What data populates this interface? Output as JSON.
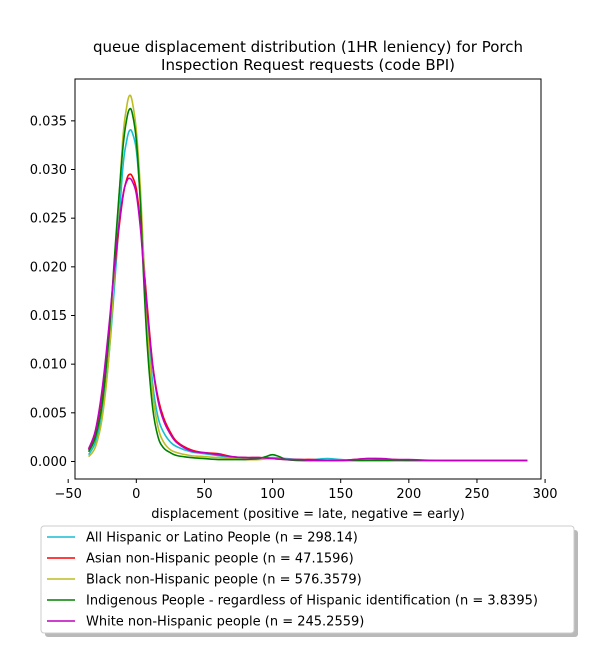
{
  "chart_data": {
    "type": "line",
    "title_line1": "queue displacement distribution (1HR leniency) for Porch",
    "title_line2": "Inspection Request  requests (code BPI)",
    "xlabel": "displacement (positive = late, negative = early)",
    "ylabel": "",
    "xlim": [
      -45,
      297
    ],
    "ylim": [
      -0.0018,
      0.0393
    ],
    "xticks": [
      -50,
      0,
      50,
      100,
      150,
      200,
      250,
      300
    ],
    "xtick_labels": [
      "−50",
      "0",
      "50",
      "100",
      "150",
      "200",
      "250",
      "300"
    ],
    "yticks": [
      0.0,
      0.005,
      0.01,
      0.015,
      0.02,
      0.025,
      0.03,
      0.035
    ],
    "ytick_labels": [
      "0.000",
      "0.005",
      "0.010",
      "0.015",
      "0.020",
      "0.025",
      "0.030",
      "0.035"
    ],
    "grid": false,
    "legend_position": "below plot, left",
    "series": [
      {
        "name": "All Hispanic or Latino People (n = 298.14)",
        "color": "#17becf",
        "x": [
          -35,
          -30,
          -25,
          -20,
          -15,
          -10,
          -7,
          -5,
          -3,
          0,
          3,
          5,
          8,
          12,
          16,
          20,
          25,
          30,
          40,
          50,
          60,
          70,
          80,
          90,
          100,
          110,
          120,
          130,
          140,
          150,
          160,
          170,
          180,
          190,
          200,
          220,
          240,
          260,
          287
        ],
        "y": [
          0.0007,
          0.002,
          0.005,
          0.011,
          0.02,
          0.03,
          0.033,
          0.034,
          0.0338,
          0.032,
          0.027,
          0.022,
          0.015,
          0.008,
          0.0045,
          0.003,
          0.002,
          0.0015,
          0.001,
          0.0008,
          0.0006,
          0.0004,
          0.0004,
          0.0003,
          0.0004,
          0.0003,
          0.0002,
          0.0002,
          0.0003,
          0.0002,
          0.0001,
          0.0001,
          0.0001,
          0.0001,
          0.0001,
          0.0001,
          0.0001,
          0.0001,
          0.0001
        ]
      },
      {
        "name": "Asian non-Hispanic people (n = 47.1596)",
        "color": "#ff0000",
        "x": [
          -35,
          -30,
          -25,
          -20,
          -15,
          -10,
          -7,
          -5,
          -3,
          0,
          3,
          5,
          8,
          12,
          16,
          20,
          25,
          30,
          40,
          50,
          60,
          70,
          80,
          90,
          100,
          110,
          120,
          130,
          140,
          150,
          160,
          170,
          180,
          190,
          200,
          220,
          240,
          260,
          287
        ],
        "y": [
          0.0012,
          0.003,
          0.007,
          0.013,
          0.021,
          0.027,
          0.029,
          0.0295,
          0.0293,
          0.028,
          0.0245,
          0.021,
          0.016,
          0.01,
          0.0065,
          0.0045,
          0.003,
          0.002,
          0.0012,
          0.0009,
          0.0008,
          0.0005,
          0.0004,
          0.0004,
          0.0003,
          0.0002,
          0.0002,
          0.0002,
          0.0001,
          0.0001,
          0.0002,
          0.0003,
          0.0002,
          0.0002,
          0.0001,
          0.0001,
          0.0001,
          0.0001,
          0.0001
        ]
      },
      {
        "name": "Black non-Hispanic people (n = 576.3579)",
        "color": "#bcbd22",
        "x": [
          -35,
          -30,
          -25,
          -20,
          -15,
          -10,
          -7,
          -5,
          -3,
          0,
          3,
          5,
          8,
          12,
          16,
          20,
          25,
          30,
          40,
          50,
          60,
          70,
          80,
          90,
          100,
          110,
          120,
          130,
          140,
          150,
          160,
          170,
          180,
          190,
          200,
          220,
          240,
          260,
          287
        ],
        "y": [
          0.0005,
          0.0015,
          0.0045,
          0.011,
          0.022,
          0.033,
          0.0365,
          0.0376,
          0.037,
          0.034,
          0.028,
          0.022,
          0.014,
          0.007,
          0.0035,
          0.002,
          0.0012,
          0.0009,
          0.0006,
          0.0005,
          0.0004,
          0.0003,
          0.0002,
          0.0002,
          0.0003,
          0.0002,
          0.0001,
          0.0001,
          0.0001,
          0.0001,
          0.0001,
          0.0001,
          0.0001,
          0.0001,
          0.0001,
          0.0001,
          0.0001,
          0.0001,
          0.0001
        ]
      },
      {
        "name": "Indigenous People - regardless of Hispanic identification (n = 3.8395)",
        "color": "#008000",
        "x": [
          -35,
          -30,
          -25,
          -20,
          -15,
          -10,
          -7,
          -5,
          -3,
          0,
          3,
          5,
          8,
          12,
          16,
          20,
          25,
          30,
          40,
          50,
          60,
          70,
          80,
          90,
          95,
          100,
          105,
          110,
          120,
          130,
          140,
          150,
          160,
          170,
          180,
          190,
          200,
          220,
          240,
          260,
          287
        ],
        "y": [
          0.001,
          0.0025,
          0.006,
          0.013,
          0.023,
          0.032,
          0.0352,
          0.0362,
          0.0358,
          0.033,
          0.0265,
          0.02,
          0.012,
          0.0055,
          0.0025,
          0.0014,
          0.0009,
          0.0006,
          0.0004,
          0.0003,
          0.0002,
          0.0002,
          0.0002,
          0.0003,
          0.0005,
          0.0007,
          0.0005,
          0.0002,
          0.0001,
          0.0001,
          0.0001,
          0.0001,
          0.0001,
          0.0001,
          0.0001,
          0.0001,
          0.0001,
          0.0001,
          0.0001,
          0.0001,
          0.0001
        ]
      },
      {
        "name": "White non-Hispanic people (n = 245.2559)",
        "color": "#bf00bf",
        "x": [
          -35,
          -30,
          -25,
          -20,
          -15,
          -10,
          -7,
          -5,
          -3,
          0,
          3,
          5,
          8,
          12,
          16,
          20,
          25,
          30,
          40,
          50,
          60,
          70,
          80,
          90,
          100,
          110,
          120,
          130,
          140,
          150,
          160,
          170,
          180,
          190,
          200,
          220,
          240,
          260,
          287
        ],
        "y": [
          0.0013,
          0.0032,
          0.0075,
          0.014,
          0.0215,
          0.0272,
          0.0288,
          0.0291,
          0.0288,
          0.0275,
          0.024,
          0.0205,
          0.0155,
          0.0098,
          0.0062,
          0.0042,
          0.0028,
          0.0019,
          0.0011,
          0.0009,
          0.0007,
          0.0005,
          0.0004,
          0.0004,
          0.0003,
          0.0002,
          0.0002,
          0.0001,
          0.0001,
          0.0001,
          0.0002,
          0.0003,
          0.0003,
          0.0002,
          0.0002,
          0.0001,
          0.0001,
          0.0001,
          0.0001
        ]
      }
    ]
  }
}
